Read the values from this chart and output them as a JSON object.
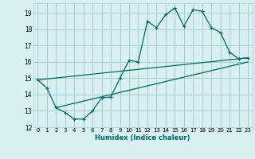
{
  "xlabel": "Humidex (Indice chaleur)",
  "bg_color": "#d8f0f0",
  "grid_color": "#aacccc",
  "line_color": "#006666",
  "xlim": [
    -0.5,
    23.5
  ],
  "ylim": [
    12,
    19.6
  ],
  "yticks": [
    12,
    13,
    14,
    15,
    16,
    17,
    18,
    19
  ],
  "xticks": [
    0,
    1,
    2,
    3,
    4,
    5,
    6,
    7,
    8,
    9,
    10,
    11,
    12,
    13,
    14,
    15,
    16,
    17,
    18,
    19,
    20,
    21,
    22,
    23
  ],
  "curve_x": [
    0,
    1,
    2,
    3,
    4,
    5,
    6,
    7,
    8,
    9,
    10,
    11,
    12,
    13,
    14,
    15,
    16,
    17,
    18,
    19,
    20,
    21,
    22,
    23
  ],
  "curve_y": [
    14.9,
    14.4,
    13.2,
    12.9,
    12.5,
    12.5,
    13.0,
    13.8,
    13.85,
    15.0,
    16.1,
    16.0,
    18.5,
    18.1,
    18.9,
    19.3,
    18.2,
    19.2,
    19.1,
    18.1,
    17.8,
    16.6,
    16.2,
    16.25
  ],
  "line1_x": [
    0,
    23
  ],
  "line1_y": [
    14.9,
    16.25
  ],
  "line2_x": [
    2,
    23
  ],
  "line2_y": [
    13.2,
    16.0
  ]
}
